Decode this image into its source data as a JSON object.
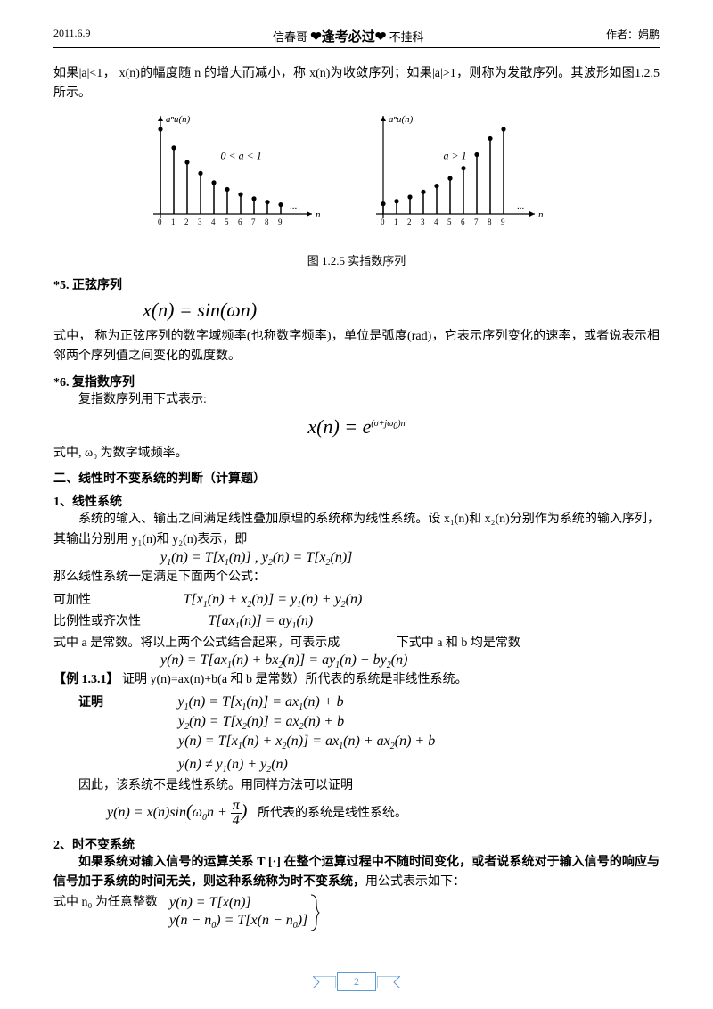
{
  "header": {
    "left": "2011.6.9",
    "center_left": "信春哥",
    "center_mid": "❤逢考必过❤",
    "center_right": "不挂科",
    "right": "作者：娟鹏"
  },
  "intro": "如果|a|<1，  x(n)的幅度随 n 的增大而减小，称 x(n)为收敛序列；如果|a|>1，则称为发散序列。其波形如图1.2.5 所示。",
  "figure": {
    "label_y_left": "aⁿu(n)",
    "label_y_right": "aⁿu(n)",
    "cond_left": "0 < a < 1",
    "cond_right": "a > 1",
    "axis_x_left": "0 1 2 3 4 5 6 7 8 9",
    "axis_x_right": "0 1 2 3 4 5 6 7 8 9",
    "axis_n": "n",
    "dots": "...",
    "caption": "图 1.2.5  实指数序列",
    "left_values": [
      1.0,
      0.78,
      0.61,
      0.48,
      0.37,
      0.29,
      0.23,
      0.18,
      0.14,
      0.11
    ],
    "right_values": [
      0.12,
      0.15,
      0.2,
      0.26,
      0.33,
      0.42,
      0.54,
      0.7,
      0.89,
      1.0
    ]
  },
  "sec5": {
    "title": "*5.  正弦序列",
    "formula": "x(n) = sin(ωn)",
    "text": "式中，      称为正弦序列的数字域频率(也称数字频率)，单位是弧度(rad)，它表示序列变化的速率，或者说表示相邻两个序列值之间变化的弧度数。"
  },
  "sec6": {
    "title": "*6.  复指数序列",
    "line1": "复指数序列用下式表示:",
    "formula": "x(n) = e^{(σ+jω₀)n}",
    "line2": "式中, ω₀ 为数字域频率。"
  },
  "sec_linear": {
    "title": "二、线性时不变系统的判断（计算题）",
    "sub1": "1、线性系统",
    "p1": "系统的输入、输出之间满足线性叠加原理的系统称为线性系统。设 x₁(n)和 x₂(n)分别作为系统的输入序列，其输出分别用 y₁(n)和 y₂(n)表示，即",
    "eq1": "y₁(n) = T[x₁(n)] , y₂(n) = T[x₂(n)]",
    "p2": "那么线性系统一定满足下面两个公式：",
    "add_label": "可加性",
    "add_eq": "T[x₁(n) + x₂(n)] = y₁(n) + y₂(n)",
    "scale_label": "比例性或齐次性",
    "scale_eq": "T[ax₁(n)] = ay₁(n)",
    "p3_left": "式中 a 是常数。将以上两个公式结合起来，可表示成",
    "p3_right": "下式中 a 和 b 均是常数",
    "combined_eq": "y(n) = T[ax₁(n) + bx₂(n)] = ay₁(n) + by₂(n)"
  },
  "example": {
    "title": "【例 1.3.1】",
    "desc": "证明 y(n)=ax(n)+b(a 和 b 是常数）所代表的系统是非线性系统。",
    "proof_label": "证明",
    "eq1": "y₁(n) = T[x₁(n)] = ax₁(n) + b",
    "eq2": "y₂(n) = T[x₂(n)] = ax₂(n) + b",
    "eq3": "y(n) = T[x₁(n) + x₂(n)] = ax₁(n) + ax₂(n) + b",
    "eq4": "y(n) ≠ y₁(n) + y₂(n)",
    "conclusion": "因此，该系统不是线性系统。用同样方法可以证明",
    "eq5": "y(n) = x(n)sin(ω₀n + π/4)",
    "eq5_text": "所代表的系统是线性系统。"
  },
  "sec_ti": {
    "title": "2、时不变系统",
    "p1": "如果系统对输入信号的运算关系 T [·] 在整个运算过程中不随时间变化，或者说系统对于输入信号的响应与信号加于系统的时间无关，则这种系统称为时不变系统，",
    "p1_tail": "用公式表示如下：",
    "p2": "式中 n₀ 为任意整数",
    "eq1": "y(n) = T[x(n)]",
    "eq2": "y(n − n₀) = T[x(n − n₀)]"
  },
  "page_number": "2"
}
